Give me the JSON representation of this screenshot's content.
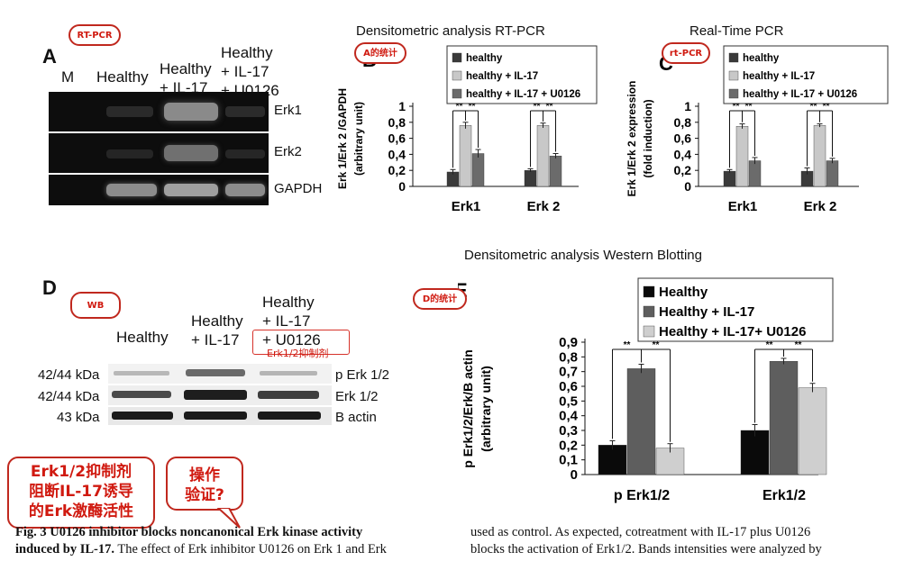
{
  "panelA": {
    "letter": "A",
    "lanes": [
      "M",
      "Healthy",
      "Healthy\n+ IL-17",
      "Healthy\n+ IL-17\n+ U0126"
    ],
    "rows": [
      "Erk1",
      "Erk2",
      "GAPDH"
    ],
    "callout": "RT-PCR"
  },
  "panelD": {
    "letter": "D",
    "lanes": [
      "Healthy",
      "Healthy\n+ IL-17",
      "Healthy\n+ IL-17\n+ U0126"
    ],
    "kda": [
      "42/44 kDa",
      "42/44 kDa",
      "43 kDa"
    ],
    "rows": [
      "p Erk 1/2",
      "Erk 1/2",
      "B actin"
    ],
    "callout": "WB",
    "inhibitor_note": "Erk1/2抑制剂"
  },
  "annotations": {
    "B": "A的统计",
    "C": "rt-PCR",
    "E": "D的统计",
    "conclusion": "Erk1/2抑制剂\n阻断IL-17诱导\n的Erk激酶活性",
    "question": "操作\n验证?"
  },
  "titles": {
    "B": "Densitometric analysis  RT-PCR",
    "C": "Real-Time PCR",
    "E": "Densitometric analysis Western Blotting"
  },
  "caption": {
    "left_line1_bold": "Fig. 3 U0126 inhibitor blocks noncanonical Erk kinase activity",
    "left_line2_bold": "induced by IL-17.",
    "left_line2_rest": " The effect of Erk inhibitor U0126 on Erk 1 and Erk",
    "right_line1": "used as control. As expected, cotreatment with IL-17 plus U0126",
    "right_line2": "blocks the activation of Erk1/2. Bands intensities were analyzed by"
  },
  "colors": {
    "dark": "#3a3a3a",
    "light": "#c8c8c8",
    "mid": "#6b6b6b",
    "E_black": "#0a0a0a",
    "E_mid": "#5e5e5e",
    "E_light": "#cfcfcf",
    "callout_red": "#c0281e"
  },
  "chart_data": [
    {
      "panel": "B",
      "type": "bar",
      "title": "Densitometric analysis  RT-PCR",
      "letter": "B",
      "ylabel": "Erk 1/Erk 2 /GAPDH\n(arbitrary unit)",
      "categories": [
        "Erk1",
        "Erk 2"
      ],
      "series": [
        {
          "name": "healthy",
          "values": [
            0.18,
            0.2
          ],
          "errors": [
            0.03,
            0.02
          ],
          "color": "#3a3a3a"
        },
        {
          "name": "healthy + IL-17",
          "values": [
            0.76,
            0.76
          ],
          "errors": [
            0.04,
            0.03
          ],
          "color": "#c8c8c8"
        },
        {
          "name": "healthy + IL-17 + U0126",
          "values": [
            0.41,
            0.38
          ],
          "errors": [
            0.05,
            0.03
          ],
          "color": "#6b6b6b"
        }
      ],
      "yticks": [
        "0",
        "0,2",
        "0,4",
        "0,6",
        "0,8",
        "1"
      ],
      "ylim": [
        0,
        1
      ],
      "significance": "**",
      "legend": "top"
    },
    {
      "panel": "C",
      "type": "bar",
      "title": "Real-Time PCR",
      "letter": "C",
      "ylabel": "Erk 1/Erk 2 expression\n(fold induction)",
      "categories": [
        "Erk1",
        "Erk 2"
      ],
      "series": [
        {
          "name": "healthy",
          "values": [
            0.19,
            0.19
          ],
          "errors": [
            0.02,
            0.04
          ],
          "color": "#3a3a3a"
        },
        {
          "name": "healthy + IL-17",
          "values": [
            0.75,
            0.76
          ],
          "errors": [
            0.03,
            0.02
          ],
          "color": "#c8c8c8"
        },
        {
          "name": "healthy + IL-17 + U0126",
          "values": [
            0.32,
            0.32
          ],
          "errors": [
            0.04,
            0.03
          ],
          "color": "#6b6b6b"
        }
      ],
      "yticks": [
        "0",
        "0,2",
        "0,4",
        "0,6",
        "0,8",
        "1"
      ],
      "ylim": [
        0,
        1
      ],
      "significance": "**",
      "legend": "top"
    },
    {
      "panel": "E",
      "type": "bar",
      "title": "Densitometric analysis Western Blotting",
      "letter": "E",
      "ylabel": "p Erk1/2/Erk/B actin\n(arbitrary unit)",
      "categories": [
        "p Erk1/2",
        "Erk1/2"
      ],
      "series": [
        {
          "name": "Healthy",
          "values": [
            0.2,
            0.3
          ],
          "errors": [
            0.03,
            0.04
          ],
          "color": "#0a0a0a"
        },
        {
          "name": "Healthy + IL-17",
          "values": [
            0.72,
            0.77
          ],
          "errors": [
            0.03,
            0.02
          ],
          "color": "#5e5e5e"
        },
        {
          "name": "Healthy + IL-17+ U0126",
          "values": [
            0.18,
            0.59
          ],
          "errors": [
            0.03,
            0.03
          ],
          "color": "#cfcfcf"
        }
      ],
      "yticks": [
        "0",
        "0,1",
        "0,2",
        "0,3",
        "0,4",
        "0,5",
        "0,6",
        "0,7",
        "0,8",
        "0,9"
      ],
      "ylim": [
        0,
        0.9
      ],
      "significance": "**",
      "legend": "top"
    }
  ]
}
